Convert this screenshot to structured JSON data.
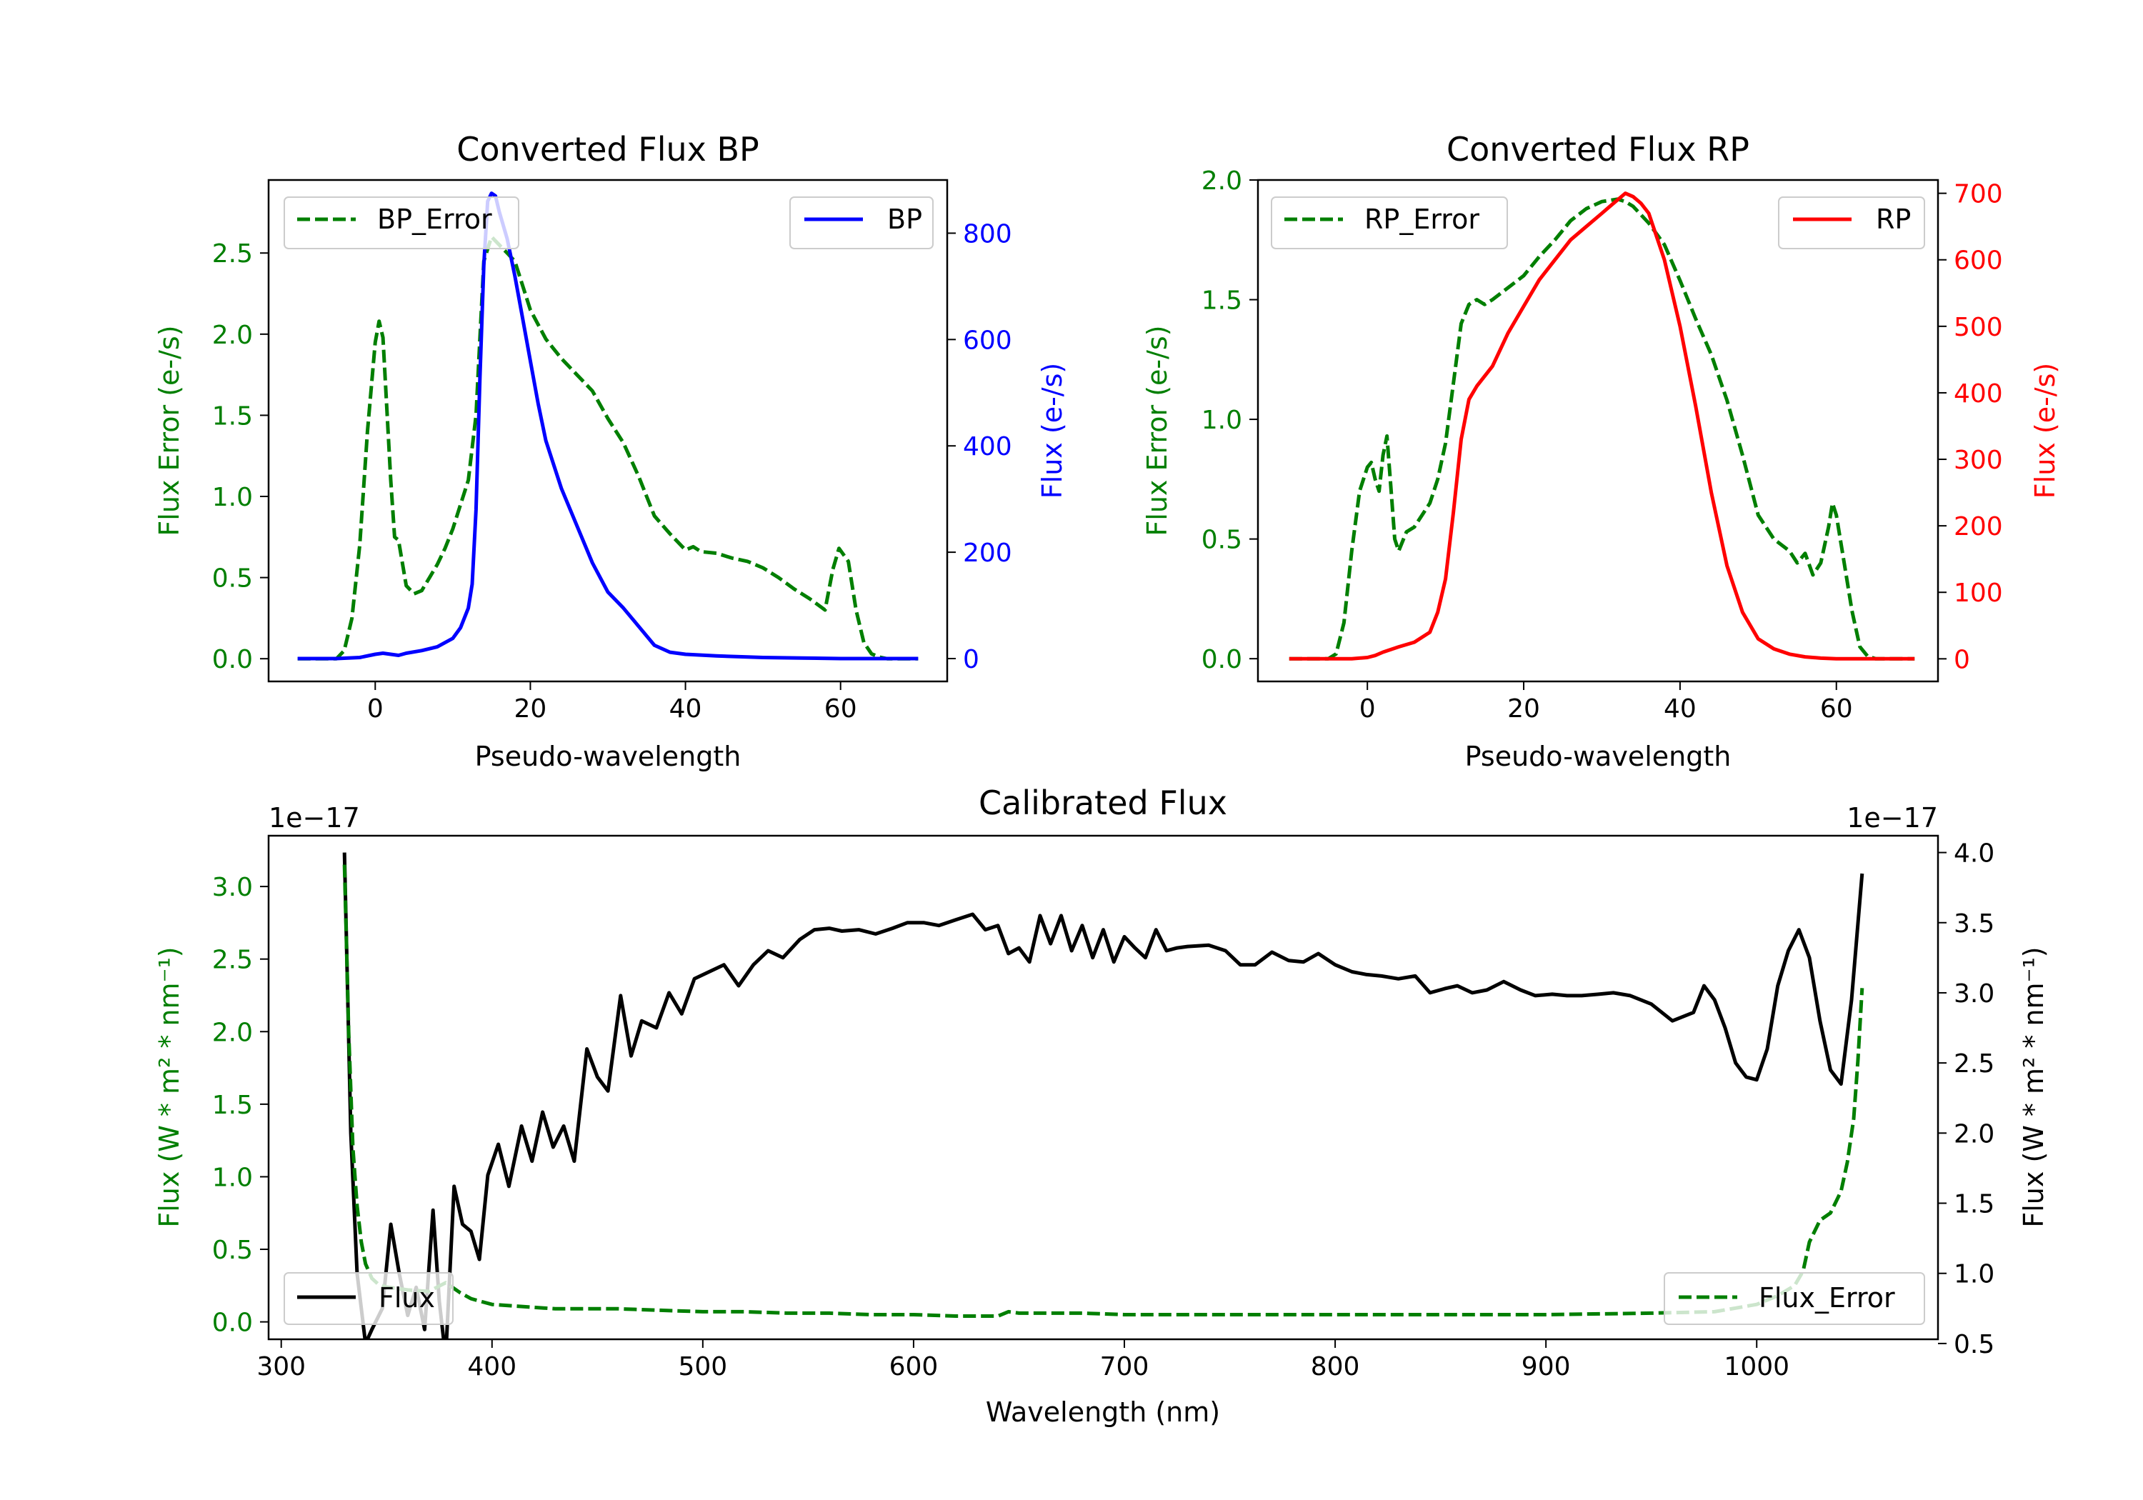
{
  "colors": {
    "green": "#007f00",
    "blue": "#0000ff",
    "red": "#ff0000",
    "black": "#000000"
  },
  "chart_data": [
    {
      "type": "line",
      "title": "Converted Flux BP",
      "xlabel": "Pseudo-wavelength",
      "ylabel_left": "Flux Error (e-/s)",
      "ylabel_right": "Flux (e-/s)",
      "xlim": [
        -13.75,
        73.75
      ],
      "ylim_left": [
        -0.14,
        2.95
      ],
      "ylim_right": [
        -43,
        900
      ],
      "xticks": [
        "0",
        "20",
        "40",
        "60"
      ],
      "xtick_values": [
        0,
        20,
        40,
        60
      ],
      "yticks_left": [
        "0.0",
        "0.5",
        "1.0",
        "1.5",
        "2.0",
        "2.5"
      ],
      "ytick_values_left": [
        0,
        0.5,
        1.0,
        1.5,
        2.0,
        2.5
      ],
      "yticks_right": [
        "0",
        "200",
        "400",
        "600",
        "800"
      ],
      "ytick_values_right": [
        0,
        200,
        400,
        600,
        800
      ],
      "legend_left": "BP_Error",
      "legend_right": "BP",
      "series": [
        {
          "name": "BP_Error",
          "axis": "left",
          "color": "green",
          "style": "dashed",
          "x": [
            -10,
            -5,
            -4,
            -3,
            -2,
            -1,
            0,
            0.5,
            1,
            2,
            2.5,
            3,
            4,
            5,
            6,
            7,
            8,
            9,
            10,
            11,
            12,
            13,
            14,
            15,
            16,
            17,
            18,
            19,
            20,
            22,
            24,
            26,
            28,
            30,
            32,
            34,
            36,
            38,
            40,
            41,
            42,
            44,
            46,
            48,
            50,
            52,
            54,
            56,
            58,
            59,
            59.8,
            61,
            62,
            63,
            64,
            65,
            66,
            68,
            70
          ],
          "y": [
            0.0,
            0.0,
            0.05,
            0.25,
            0.7,
            1.4,
            1.95,
            2.08,
            1.98,
            1.1,
            0.75,
            0.73,
            0.45,
            0.4,
            0.42,
            0.5,
            0.58,
            0.68,
            0.8,
            0.95,
            1.1,
            1.5,
            2.45,
            2.6,
            2.55,
            2.5,
            2.45,
            2.3,
            2.15,
            1.97,
            1.85,
            1.75,
            1.65,
            1.48,
            1.33,
            1.12,
            0.88,
            0.77,
            0.67,
            0.69,
            0.66,
            0.65,
            0.62,
            0.6,
            0.56,
            0.5,
            0.43,
            0.37,
            0.3,
            0.55,
            0.68,
            0.6,
            0.3,
            0.1,
            0.03,
            0.01,
            0.0,
            0.0,
            0.0
          ]
        },
        {
          "name": "BP",
          "axis": "right",
          "color": "blue",
          "style": "solid",
          "x": [
            -10,
            -5,
            -2,
            0,
            1,
            2,
            3,
            4,
            6,
            8,
            10,
            11,
            12,
            12.5,
            13,
            13.5,
            14,
            14.5,
            15,
            15.5,
            16,
            17,
            18,
            19,
            20,
            21,
            22,
            24,
            26,
            28,
            30,
            32,
            34,
            36,
            38,
            40,
            44,
            48,
            50,
            55,
            60,
            65,
            70
          ],
          "y": [
            0,
            0,
            2,
            8,
            10,
            8,
            6,
            10,
            15,
            22,
            38,
            58,
            95,
            140,
            280,
            530,
            740,
            860,
            875,
            870,
            840,
            790,
            720,
            640,
            560,
            480,
            410,
            320,
            250,
            180,
            125,
            95,
            60,
            25,
            12,
            8,
            5,
            3,
            2,
            1,
            0,
            0,
            0
          ]
        }
      ]
    },
    {
      "type": "line",
      "title": "Converted Flux RP",
      "xlabel": "Pseudo-wavelength",
      "ylabel_left": "Flux Error (e-/s)",
      "ylabel_right": "Flux (e-/s)",
      "xlim": [
        -14,
        73
      ],
      "ylim_left": [
        -0.095,
        2.0
      ],
      "ylim_right": [
        -34,
        720
      ],
      "xticks": [
        "0",
        "20",
        "40",
        "60"
      ],
      "xtick_values": [
        0,
        20,
        40,
        60
      ],
      "yticks_left": [
        "0.0",
        "0.5",
        "1.0",
        "1.5",
        "2.0"
      ],
      "ytick_values_left": [
        0,
        0.5,
        1.0,
        1.5,
        2.0
      ],
      "yticks_right": [
        "0",
        "100",
        "200",
        "300",
        "400",
        "500",
        "600",
        "700"
      ],
      "ytick_values_right": [
        0,
        100,
        200,
        300,
        400,
        500,
        600,
        700
      ],
      "legend_left": "RP_Error",
      "legend_right": "RP",
      "series": [
        {
          "name": "RP_Error",
          "axis": "right_none",
          "color": "green",
          "style": "dashed",
          "x": [
            -10,
            -5,
            -4,
            -3,
            -2,
            -1,
            0,
            0.5,
            1,
            1.5,
            2,
            2.5,
            3,
            3.5,
            4,
            5,
            6,
            7,
            8,
            9,
            10,
            11,
            12,
            13,
            14,
            15,
            16,
            18,
            20,
            22,
            24,
            26,
            28,
            30,
            32,
            33,
            34,
            36,
            38,
            40,
            42,
            44,
            46,
            48,
            50,
            52,
            54,
            55,
            56,
            57,
            58,
            59,
            59.5,
            60,
            61,
            62,
            63,
            64,
            65,
            70
          ],
          "y": [
            0.0,
            0.0,
            0.02,
            0.15,
            0.45,
            0.7,
            0.8,
            0.82,
            0.75,
            0.7,
            0.85,
            0.93,
            0.72,
            0.5,
            0.45,
            0.53,
            0.55,
            0.6,
            0.65,
            0.75,
            0.9,
            1.15,
            1.4,
            1.48,
            1.5,
            1.48,
            1.5,
            1.55,
            1.6,
            1.68,
            1.75,
            1.83,
            1.88,
            1.91,
            1.92,
            1.91,
            1.89,
            1.82,
            1.73,
            1.58,
            1.42,
            1.27,
            1.08,
            0.85,
            0.6,
            0.5,
            0.45,
            0.4,
            0.44,
            0.35,
            0.4,
            0.55,
            0.65,
            0.6,
            0.4,
            0.2,
            0.05,
            0.01,
            0.0,
            0.0
          ]
        },
        {
          "name": "RP",
          "axis": "right",
          "color": "red",
          "style": "solid",
          "x": [
            -10,
            -5,
            -2,
            0,
            1,
            2,
            4,
            6,
            8,
            9,
            10,
            11,
            12,
            13,
            14,
            16,
            18,
            20,
            22,
            24,
            26,
            28,
            30,
            31,
            32,
            33,
            34,
            35,
            36,
            38,
            40,
            42,
            44,
            46,
            48,
            50,
            52,
            54,
            56,
            58,
            60,
            62,
            64,
            66,
            70
          ],
          "y": [
            0,
            0,
            0,
            2,
            5,
            10,
            18,
            25,
            40,
            70,
            120,
            220,
            330,
            390,
            410,
            440,
            490,
            530,
            570,
            600,
            630,
            650,
            670,
            680,
            690,
            700,
            695,
            685,
            670,
            600,
            500,
            380,
            250,
            140,
            70,
            30,
            15,
            7,
            3,
            1,
            0,
            0,
            0,
            0,
            0
          ]
        }
      ]
    },
    {
      "type": "line",
      "title": "Calibrated Flux",
      "xlabel": "Wavelength (nm)",
      "ylabel_left": "Flux (W * m² * nm⁻¹)",
      "ylabel_right": "Flux (W * m² * nm⁻¹)",
      "offset_left": "1e−17",
      "offset_right": "1e−17",
      "xlim": [
        294,
        1086
      ],
      "ylim_left": [
        -0.12,
        3.35
      ],
      "ylim_right": [
        0.53,
        4.12
      ],
      "xticks": [
        "300",
        "400",
        "500",
        "600",
        "700",
        "800",
        "900",
        "1000"
      ],
      "xtick_values": [
        300,
        400,
        500,
        600,
        700,
        800,
        900,
        1000
      ],
      "yticks_left": [
        "0.0",
        "0.5",
        "1.0",
        "1.5",
        "2.0",
        "2.5",
        "3.0"
      ],
      "ytick_values_left": [
        0,
        0.5,
        1.0,
        1.5,
        2.0,
        2.5,
        3.0
      ],
      "yticks_right": [
        "0.5",
        "1.0",
        "1.5",
        "2.0",
        "2.5",
        "3.0",
        "3.5",
        "4.0"
      ],
      "ytick_values_right": [
        0.5,
        1.0,
        1.5,
        2.0,
        2.5,
        3.0,
        3.5,
        4.0
      ],
      "legend_left": "Flux",
      "legend_right": "Flux_Error",
      "series": [
        {
          "name": "Flux",
          "axis": "right",
          "color": "black",
          "style": "solid",
          "x": [
            330,
            333,
            336,
            340,
            343,
            348,
            352,
            356,
            360,
            364,
            368,
            372,
            375,
            378,
            382,
            386,
            390,
            394,
            398,
            403,
            408,
            414,
            419,
            424,
            429,
            434,
            439,
            445,
            450,
            455,
            461,
            466,
            471,
            478,
            484,
            490,
            496,
            503,
            510,
            517,
            524,
            531,
            538,
            546,
            553,
            560,
            566,
            574,
            582,
            590,
            597,
            605,
            612,
            620,
            628,
            634,
            640,
            645,
            650,
            655,
            660,
            665,
            670,
            675,
            680,
            685,
            690,
            695,
            700,
            705,
            710,
            715,
            720,
            725,
            730,
            740,
            748,
            755,
            762,
            770,
            778,
            785,
            792,
            800,
            808,
            815,
            822,
            830,
            838,
            845,
            852,
            858,
            865,
            872,
            880,
            888,
            895,
            903,
            910,
            917,
            925,
            932,
            940,
            950,
            960,
            970,
            975,
            980,
            985,
            990,
            995,
            1000,
            1005,
            1010,
            1015,
            1020,
            1025,
            1030,
            1035,
            1040,
            1045,
            1050
          ],
          "y": [
            4.0,
            2.0,
            1.0,
            0.5,
            0.6,
            0.75,
            1.35,
            1.0,
            0.7,
            0.9,
            0.6,
            1.45,
            0.8,
            0.4,
            1.62,
            1.35,
            1.3,
            1.1,
            1.7,
            1.92,
            1.62,
            2.05,
            1.8,
            2.15,
            1.9,
            2.05,
            1.8,
            2.6,
            2.4,
            2.3,
            2.98,
            2.55,
            2.8,
            2.75,
            3.0,
            2.85,
            3.1,
            3.15,
            3.2,
            3.05,
            3.2,
            3.3,
            3.25,
            3.38,
            3.45,
            3.46,
            3.44,
            3.45,
            3.42,
            3.46,
            3.5,
            3.5,
            3.48,
            3.52,
            3.56,
            3.45,
            3.48,
            3.28,
            3.32,
            3.22,
            3.55,
            3.35,
            3.55,
            3.3,
            3.48,
            3.25,
            3.45,
            3.22,
            3.4,
            3.32,
            3.25,
            3.45,
            3.3,
            3.32,
            3.33,
            3.34,
            3.3,
            3.2,
            3.2,
            3.29,
            3.23,
            3.22,
            3.28,
            3.2,
            3.15,
            3.13,
            3.12,
            3.1,
            3.12,
            3.0,
            3.03,
            3.05,
            3.0,
            3.02,
            3.08,
            3.02,
            2.98,
            2.99,
            2.98,
            2.98,
            2.99,
            3.0,
            2.98,
            2.92,
            2.8,
            2.86,
            3.05,
            2.95,
            2.75,
            2.5,
            2.4,
            2.38,
            2.6,
            3.05,
            3.3,
            3.45,
            3.25,
            2.8,
            2.45,
            2.35,
            2.95,
            3.85
          ]
        },
        {
          "name": "Flux_Error",
          "axis": "left",
          "color": "green",
          "style": "dashed",
          "x": [
            330,
            332,
            334,
            336,
            338,
            340,
            343,
            346,
            350,
            355,
            360,
            370,
            378,
            385,
            390,
            395,
            400,
            410,
            420,
            430,
            440,
            460,
            480,
            500,
            520,
            540,
            560,
            580,
            600,
            620,
            640,
            645,
            650,
            680,
            700,
            720,
            740,
            760,
            780,
            800,
            850,
            900,
            950,
            980,
            1000,
            1010,
            1018,
            1022,
            1025,
            1030,
            1035,
            1040,
            1043,
            1046,
            1048,
            1050
          ],
          "y": [
            3.15,
            2.0,
            1.2,
            0.8,
            0.55,
            0.4,
            0.3,
            0.26,
            0.24,
            0.23,
            0.22,
            0.21,
            0.27,
            0.2,
            0.16,
            0.14,
            0.12,
            0.11,
            0.1,
            0.09,
            0.09,
            0.09,
            0.08,
            0.07,
            0.07,
            0.06,
            0.06,
            0.05,
            0.05,
            0.04,
            0.04,
            0.07,
            0.06,
            0.06,
            0.05,
            0.05,
            0.05,
            0.05,
            0.05,
            0.05,
            0.05,
            0.05,
            0.06,
            0.07,
            0.12,
            0.18,
            0.25,
            0.35,
            0.55,
            0.7,
            0.75,
            0.9,
            1.1,
            1.4,
            1.8,
            2.3
          ]
        }
      ]
    }
  ]
}
